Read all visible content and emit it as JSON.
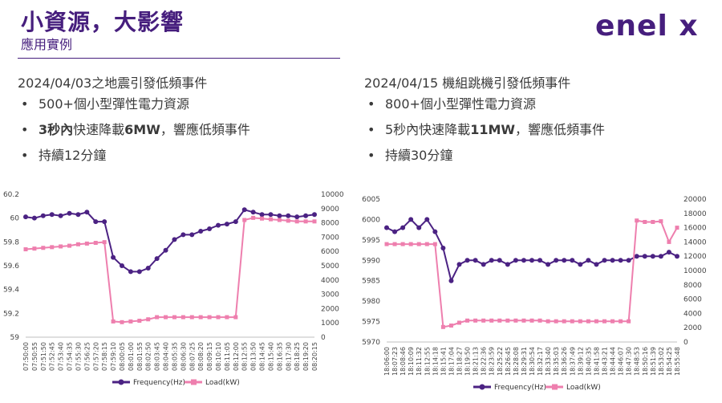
{
  "header": {
    "title": "小資源，大影響",
    "subtitle": "應用實例",
    "logo_text": "enel x"
  },
  "left": {
    "heading": "2024/04/03之地震引發低頻事件",
    "bullets": [
      {
        "parts": [
          {
            "text": "500+個小型彈性電力資源",
            "bold": false
          }
        ]
      },
      {
        "parts": [
          {
            "text": "3秒內",
            "bold": true
          },
          {
            "text": "快速降載",
            "bold": false
          },
          {
            "text": "6MW",
            "bold": true
          },
          {
            "text": "，響應低頻事件",
            "bold": false
          }
        ]
      },
      {
        "parts": [
          {
            "text": "持續12分鐘",
            "bold": false
          }
        ]
      }
    ]
  },
  "right": {
    "heading": "2024/04/15 機組跳機引發低頻事件",
    "bullets": [
      {
        "parts": [
          {
            "text": "800+個小型彈性電力資源",
            "bold": false
          }
        ]
      },
      {
        "parts": [
          {
            "text": "5秒內快速降載",
            "bold": false
          },
          {
            "text": "11MW",
            "bold": true
          },
          {
            "text": "，響應低頻事件",
            "bold": false
          }
        ]
      },
      {
        "parts": [
          {
            "text": "持續30分鐘",
            "bold": false
          }
        ]
      }
    ]
  },
  "colors": {
    "brand": "#461E7D",
    "frequency": "#4B2283",
    "load": "#EE7FAE",
    "text": "#3a3a3a"
  },
  "chart_data": [
    {
      "type": "line",
      "categories": [
        "07:50:00",
        "07:50:55",
        "07:51:50",
        "07:52:45",
        "07:53:40",
        "07:54:35",
        "07:55:30",
        "07:56:25",
        "07:57:20",
        "07:58:15",
        "07:59:10",
        "08:00:05",
        "08:01:00",
        "08:01:55",
        "08:02:50",
        "08:03:45",
        "08:04:40",
        "08:05:35",
        "08:06:30",
        "08:07:25",
        "08:08:20",
        "08:09:15",
        "08:10:10",
        "08:11:05",
        "08:12:00",
        "08:12:55",
        "08:13:50",
        "08:14:45",
        "08:15:40",
        "08:16:35",
        "08:17:30",
        "08:18:25",
        "08:19:20",
        "08:20:15"
      ],
      "y_left": {
        "min": 59,
        "max": 60.2,
        "ticks": [
          "59",
          "59.2",
          "59.4",
          "59.6",
          "59.8",
          "60",
          "60.2"
        ]
      },
      "y_right": {
        "min": 0,
        "max": 10000,
        "ticks": [
          "0",
          "1000",
          "2000",
          "3000",
          "4000",
          "5000",
          "6000",
          "7000",
          "8000",
          "9000",
          "10000"
        ]
      },
      "series": [
        {
          "name": "Frequency(Hz)",
          "axis": "left",
          "marker": "circle",
          "values": [
            60.01,
            60.0,
            60.02,
            60.03,
            60.02,
            60.04,
            60.03,
            60.05,
            59.97,
            59.97,
            59.67,
            59.6,
            59.55,
            59.55,
            59.58,
            59.66,
            59.73,
            59.82,
            59.86,
            59.86,
            59.89,
            59.91,
            59.94,
            59.95,
            59.97,
            60.07,
            60.05,
            60.03,
            60.03,
            60.02,
            60.02,
            60.01,
            60.02,
            60.03
          ]
        },
        {
          "name": "Load(kW)",
          "axis": "right",
          "marker": "square",
          "values": [
            6150,
            6200,
            6250,
            6300,
            6350,
            6400,
            6500,
            6550,
            6600,
            6650,
            1100,
            1050,
            1100,
            1150,
            1250,
            1400,
            1400,
            1400,
            1400,
            1400,
            1400,
            1400,
            1400,
            1400,
            1400,
            8200,
            8350,
            8300,
            8250,
            8200,
            8150,
            8100,
            8100,
            8100
          ]
        }
      ]
    },
    {
      "type": "line",
      "categories": [
        "18:06:00",
        "18:07:23",
        "18:08:46",
        "18:10:09",
        "18:11:32",
        "18:12:55",
        "18:14:18",
        "18:15:41",
        "18:17:04",
        "18:18:27",
        "18:19:50",
        "18:21:13",
        "18:22:36",
        "18:23:59",
        "18:25:22",
        "18:26:45",
        "18:28:08",
        "18:29:31",
        "18:30:54",
        "18:32:17",
        "18:33:40",
        "18:35:03",
        "18:36:26",
        "18:37:49",
        "18:39:12",
        "18:40:35",
        "18:41:58",
        "18:43:21",
        "18:44:44",
        "18:46:07",
        "18:47:30",
        "18:48:53",
        "18:50:16",
        "18:51:39",
        "18:53:02",
        "18:54:25",
        "18:55:48"
      ],
      "y_left": {
        "min": 5970,
        "max": 6005,
        "ticks": [
          "5970",
          "5975",
          "5980",
          "5985",
          "5990",
          "5995",
          "6000",
          "6005"
        ]
      },
      "y_right": {
        "min": 0,
        "max": 20000,
        "ticks": [
          "0",
          "2000",
          "4000",
          "6000",
          "8000",
          "10000",
          "12000",
          "14000",
          "16000",
          "18000",
          "20000"
        ]
      },
      "series": [
        {
          "name": "Frequency(Hz)",
          "axis": "left",
          "marker": "circle",
          "values": [
            5998,
            5997,
            5998,
            6000,
            5998,
            6000,
            5997,
            5993,
            5985,
            5989,
            5990,
            5990,
            5989,
            5990,
            5990,
            5989,
            5990,
            5990,
            5990,
            5990,
            5989,
            5990,
            5990,
            5990,
            5989,
            5990,
            5989,
            5990,
            5990,
            5990,
            5990,
            5991,
            5991,
            5991,
            5991,
            5992,
            5991
          ]
        },
        {
          "name": "Load(kW)",
          "axis": "right",
          "marker": "square",
          "values": [
            13700,
            13700,
            13700,
            13700,
            13700,
            13700,
            13700,
            2100,
            2300,
            2700,
            3000,
            3000,
            3000,
            3000,
            3000,
            3000,
            3000,
            3000,
            3000,
            3000,
            2900,
            2900,
            2900,
            2900,
            2900,
            2900,
            2900,
            2900,
            2900,
            2900,
            2900,
            17000,
            16800,
            16800,
            16900,
            14000,
            16000
          ]
        }
      ]
    }
  ]
}
